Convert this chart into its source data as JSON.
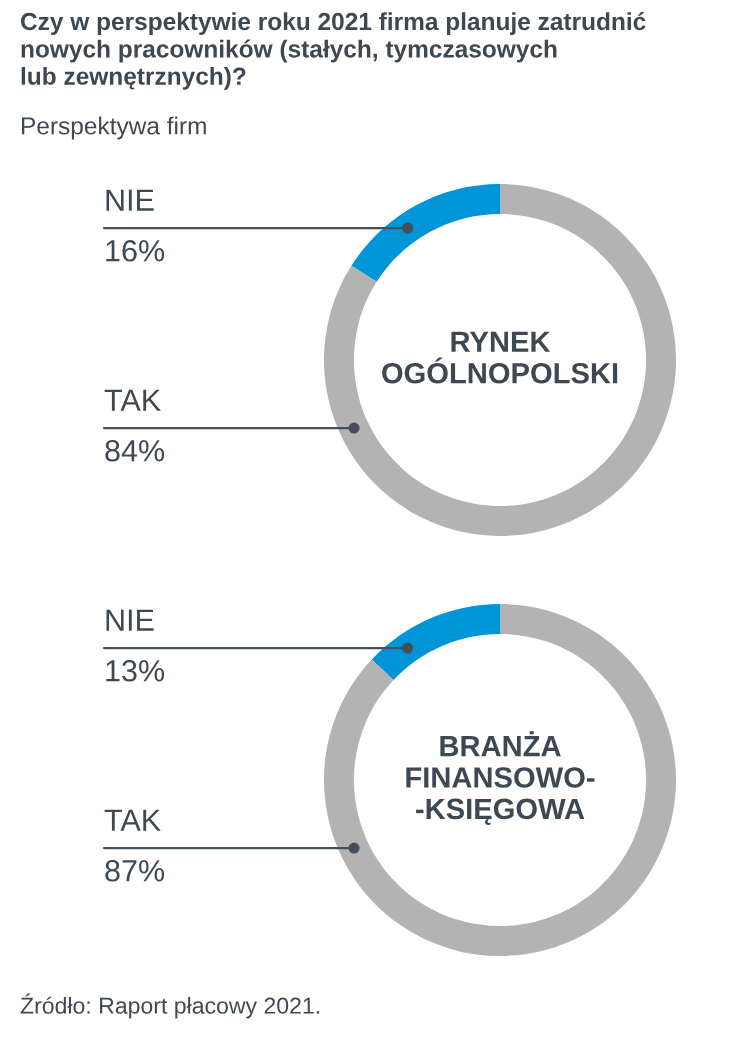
{
  "chart_data": [
    {
      "type": "donut",
      "title": "Czy w perspektywie roku 2021 firma planuje zatrudnić\nnowych pracowników (stałych, tymczasowych\nlub zewnętrznych)?",
      "subtitle": "Perspektywa firm",
      "annotations": [
        "RYNEK\nOGÓLNOPOLSKI"
      ],
      "categories": [
        "NIE",
        "TAK"
      ],
      "values": [
        16,
        84
      ],
      "value_labels": [
        "16%",
        "84%"
      ],
      "colors": [
        "#0094d9",
        "#b3b3b3"
      ]
    },
    {
      "type": "donut",
      "annotations": [
        "BRANŻA\nFINANSOWO-\n-KSIĘGOWA",
        "Źródło: Raport płacowy 2021."
      ],
      "categories": [
        "NIE",
        "TAK"
      ],
      "values": [
        13,
        87
      ],
      "value_labels": [
        "13%",
        "87%"
      ],
      "colors": [
        "#0094d9",
        "#b3b3b3"
      ]
    }
  ]
}
